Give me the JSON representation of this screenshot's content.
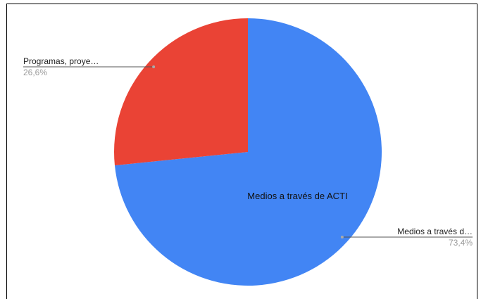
{
  "chart_data": {
    "type": "pie",
    "categories": [
      "Medios a través d…",
      "Programas, proye…"
    ],
    "values": [
      73.4,
      26.6
    ],
    "value_labels": [
      "73,4%",
      "26,6%"
    ],
    "inner_labels": [
      "Medios a través de ACTI",
      null
    ],
    "colors": [
      "#4285f4",
      "#ea4335"
    ]
  }
}
